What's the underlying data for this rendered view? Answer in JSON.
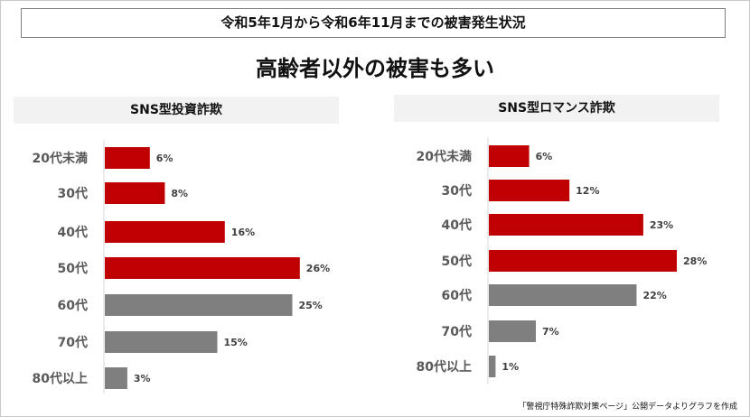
{
  "top_title": "令和5年1月から令和6年11月までの被害発生状況",
  "headline": "高齢者以外の被害も多い",
  "footnote": "「警視庁特殊詐欺対策ページ」公開データよりグラフを作成",
  "colors": {
    "highlight": "#c00000",
    "other": "#7f7f7f"
  },
  "chart_data": [
    {
      "type": "bar",
      "orientation": "horizontal",
      "title": "SNS型投資詐欺",
      "categories": [
        "20代未満",
        "30代",
        "40代",
        "50代",
        "60代",
        "70代",
        "80代以上"
      ],
      "values": [
        6,
        8,
        16,
        26,
        25,
        15,
        3
      ],
      "labels": [
        "6%",
        "8%",
        "16%",
        "26%",
        "25%",
        "15%",
        "3%"
      ],
      "highlight": [
        true,
        true,
        true,
        true,
        false,
        false,
        false
      ],
      "unit": "%"
    },
    {
      "type": "bar",
      "orientation": "horizontal",
      "title": "SNS型ロマンス詐欺",
      "categories": [
        "20代未満",
        "30代",
        "40代",
        "50代",
        "60代",
        "70代",
        "80代以上"
      ],
      "values": [
        6,
        12,
        23,
        28,
        22,
        7,
        1
      ],
      "labels": [
        "6%",
        "12%",
        "23%",
        "28%",
        "22%",
        "7%",
        "1%"
      ],
      "highlight": [
        true,
        true,
        true,
        true,
        false,
        false,
        false
      ],
      "unit": "%"
    }
  ]
}
